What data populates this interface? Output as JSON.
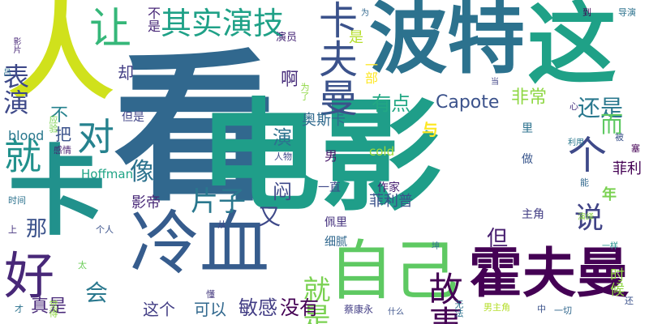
{
  "wordcloud": {
    "words": [
      {
        "text": "看",
        "color": "#31688e"
      },
      {
        "text": "电影",
        "color": "#1f9e89"
      },
      {
        "text": "人",
        "color": "#d0e11c"
      },
      {
        "text": "卡",
        "color": "#21918c"
      },
      {
        "text": "波特",
        "color": "#2c728e"
      },
      {
        "text": "这",
        "color": "#1fa187"
      },
      {
        "text": "冷血",
        "color": "#365c8d"
      },
      {
        "text": "霍夫曼",
        "color": "#440154"
      },
      {
        "text": "自己",
        "color": "#5ec962"
      },
      {
        "text": "卡夫曼",
        "color": "#3b528b"
      },
      {
        "text": "让",
        "color": "#35b779"
      },
      {
        "text": "表演",
        "color": "#3e4989"
      },
      {
        "text": "其实演技",
        "color": "#1fa187"
      },
      {
        "text": "好",
        "color": "#482878"
      },
      {
        "text": "就",
        "color": "#21918c"
      },
      {
        "text": "对",
        "color": "#26828e"
      },
      {
        "text": "个",
        "color": "#3e4989"
      },
      {
        "text": "故事",
        "color": "#440154"
      },
      {
        "text": "有点",
        "color": "#22a884"
      },
      {
        "text": "Capote",
        "color": "#3b528b"
      },
      {
        "text": "还是",
        "color": "#2a788e"
      },
      {
        "text": "就是",
        "color": "#7ad151"
      },
      {
        "text": "说",
        "color": "#414487"
      },
      {
        "text": "片子",
        "color": "#2a788e"
      },
      {
        "text": "影帝",
        "color": "#482878"
      },
      {
        "text": "像",
        "color": "#2c728e"
      },
      {
        "text": "闷",
        "color": "#3e4989"
      },
      {
        "text": "没有",
        "color": "#440154"
      },
      {
        "text": "敏感",
        "color": "#433e85"
      },
      {
        "text": "可以",
        "color": "#31688e"
      },
      {
        "text": "这个",
        "color": "#433e85"
      },
      {
        "text": "真是",
        "color": "#482878"
      },
      {
        "text": "会",
        "color": "#2a788e"
      },
      {
        "text": "那",
        "color": "#3b528b"
      },
      {
        "text": "但",
        "color": "#481f70"
      },
      {
        "text": "又",
        "color": "#3e4989"
      },
      {
        "text": "演",
        "color": "#2c728e"
      },
      {
        "text": "与",
        "color": "#fde725"
      },
      {
        "text": "而",
        "color": "#5ec962"
      },
      {
        "text": "非常",
        "color": "#8fd744"
      },
      {
        "text": "一部",
        "color": "#fde725"
      },
      {
        "text": "是",
        "color": "#b5de2b"
      },
      {
        "text": "啊",
        "color": "#472d7b"
      },
      {
        "text": "却",
        "color": "#433e85"
      },
      {
        "text": "不是",
        "color": "#482878"
      },
      {
        "text": "不",
        "color": "#26828e"
      },
      {
        "text": "把",
        "color": "#3b528b"
      },
      {
        "text": "奥斯卡",
        "color": "#306a8e"
      },
      {
        "text": "菲利",
        "color": "#440154"
      },
      {
        "text": "年",
        "color": "#7ad151"
      },
      {
        "text": "时候",
        "color": "#8fd744"
      },
      {
        "text": "菲利普",
        "color": "#3b528b"
      },
      {
        "text": "cold",
        "color": "#a0da39"
      },
      {
        "text": "blood",
        "color": "#2a788e"
      },
      {
        "text": "Hoffman",
        "color": "#20a486"
      },
      {
        "text": "男",
        "color": "#48186a"
      },
      {
        "text": "作家",
        "color": "#482173"
      },
      {
        "text": "一直",
        "color": "#3e4989"
      },
      {
        "text": "佩里",
        "color": "#46337f"
      },
      {
        "text": "细腻",
        "color": "#31688e"
      },
      {
        "text": "主角",
        "color": "#433e85"
      },
      {
        "text": "做",
        "color": "#39568c"
      },
      {
        "text": "里",
        "color": "#2c728e"
      },
      {
        "text": "演员",
        "color": "#482878"
      },
      {
        "text": "但是",
        "color": "#414487"
      },
      {
        "text": "为了",
        "color": "#8fd744"
      },
      {
        "text": "应验",
        "color": "#7ad151"
      },
      {
        "text": "感情",
        "color": "#481f70"
      },
      {
        "text": "人物",
        "color": "#3e4989"
      },
      {
        "text": "时间",
        "color": "#2c728e"
      },
      {
        "text": "个人",
        "color": "#3b528b"
      },
      {
        "text": "从",
        "color": "#3e4989"
      },
      {
        "text": "上",
        "color": "#46337f"
      },
      {
        "text": "太",
        "color": "#6ccd5a"
      },
      {
        "text": "懂",
        "color": "#44397f"
      },
      {
        "text": "觉得",
        "color": "#8fd744"
      },
      {
        "text": "才",
        "color": "#2c728e"
      },
      {
        "text": "无法",
        "color": "#2c728e"
      },
      {
        "text": "蔡康永",
        "color": "#433e85"
      },
      {
        "text": "什么",
        "color": "#3b528b"
      },
      {
        "text": "男主角",
        "color": "#b5de2b"
      },
      {
        "text": "中",
        "color": "#3b528b"
      },
      {
        "text": "一切",
        "color": "#31688e"
      },
      {
        "text": "还",
        "color": "#3b528b"
      },
      {
        "text": "一样",
        "color": "#21918c"
      },
      {
        "text": "演绎",
        "color": "#8fd744"
      },
      {
        "text": "能",
        "color": "#31688e"
      },
      {
        "text": "利用",
        "color": "#2a788e"
      },
      {
        "text": "被",
        "color": "#3b528b"
      },
      {
        "text": "塞",
        "color": "#440154"
      },
      {
        "text": "心",
        "color": "#46337f"
      },
      {
        "text": "当",
        "color": "#414487"
      },
      {
        "text": "到",
        "color": "#440154"
      },
      {
        "text": "导演",
        "color": "#2c728e"
      },
      {
        "text": "为",
        "color": "#31688e"
      },
      {
        "text": "影片",
        "color": "#482878"
      },
      {
        "text": "吕",
        "color": "#2c728e"
      },
      {
        "text": "坤",
        "color": "#2c728e"
      }
    ]
  }
}
